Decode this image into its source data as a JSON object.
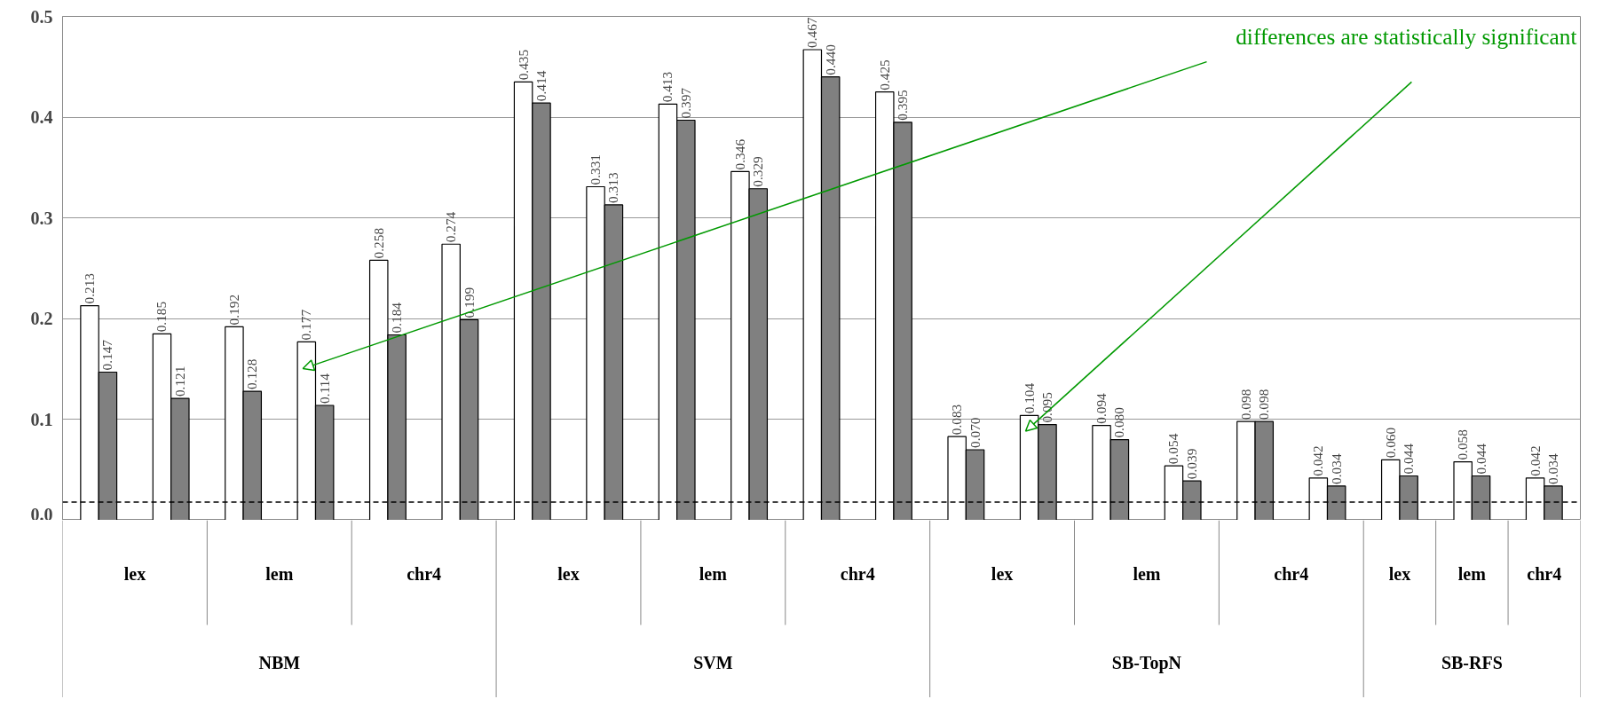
{
  "chart_data": {
    "type": "bar",
    "categories": [
      null,
      null,
      null,
      null,
      null,
      null,
      null,
      null,
      null,
      null,
      null,
      null,
      null,
      null,
      null,
      null,
      null,
      null,
      null,
      null,
      null
    ],
    "series": [
      {
        "color": "#ffffff",
        "values": [
          0.213,
          0.185,
          0.192,
          0.177,
          0.258,
          0.274,
          0.435,
          0.331,
          0.413,
          0.346,
          0.467,
          0.425,
          0.083,
          0.104,
          0.094,
          0.054,
          0.098,
          0.042,
          0.06,
          0.058,
          0.042
        ],
        "value_labels": [
          "0.213",
          "0.185",
          "0.192",
          "0.177",
          "0.258",
          "0.274",
          "0.435",
          "0.331",
          "0.413",
          "0.346",
          "0.467",
          "0.425",
          "0.083",
          "0.104",
          "0.094",
          "0.054",
          "0.098",
          "0.042",
          "0.060",
          "0.058",
          "0.042"
        ]
      },
      {
        "color": "#808080",
        "values": [
          0.147,
          0.121,
          0.128,
          0.114,
          0.184,
          0.199,
          0.414,
          0.313,
          0.397,
          0.329,
          0.44,
          0.395,
          0.07,
          0.095,
          0.08,
          0.039,
          0.098,
          0.034,
          0.044,
          0.044,
          0.034
        ],
        "value_labels": [
          "0.147",
          "0.121",
          "0.128",
          "0.114",
          "0.184",
          "0.199",
          "0.414",
          "0.313",
          "0.397",
          "0.329",
          "0.440",
          "0.395",
          "0.070",
          "0.095",
          "0.080",
          "0.039",
          "0.098",
          "0.034",
          "0.044",
          "0.044",
          "0.034"
        ]
      }
    ],
    "ylim": [
      0,
      0.5
    ],
    "yticks": [
      {
        "value": 0,
        "label": "0.0"
      },
      {
        "value": 0.1,
        "label": "0.1"
      },
      {
        "value": 0.2,
        "label": "0.2"
      },
      {
        "value": 0.3,
        "label": "0.3"
      },
      {
        "value": 0.4,
        "label": "0.4"
      },
      {
        "value": 0.5,
        "label": "0.5"
      }
    ],
    "grid": "y",
    "ref_lines": [
      {
        "axis": "y",
        "value": 0.018,
        "color": "#000000",
        "line_style": "dashed"
      }
    ],
    "annotations": [
      "lex",
      "lem",
      "chr4",
      "lex",
      "lem",
      "chr4",
      "lex",
      "lem",
      "chr4",
      "lex",
      "lem",
      "chr4",
      "NBM",
      "SVM",
      "SB-TopN",
      "SB-RFS",
      "differences are statistically significant"
    ]
  }
}
